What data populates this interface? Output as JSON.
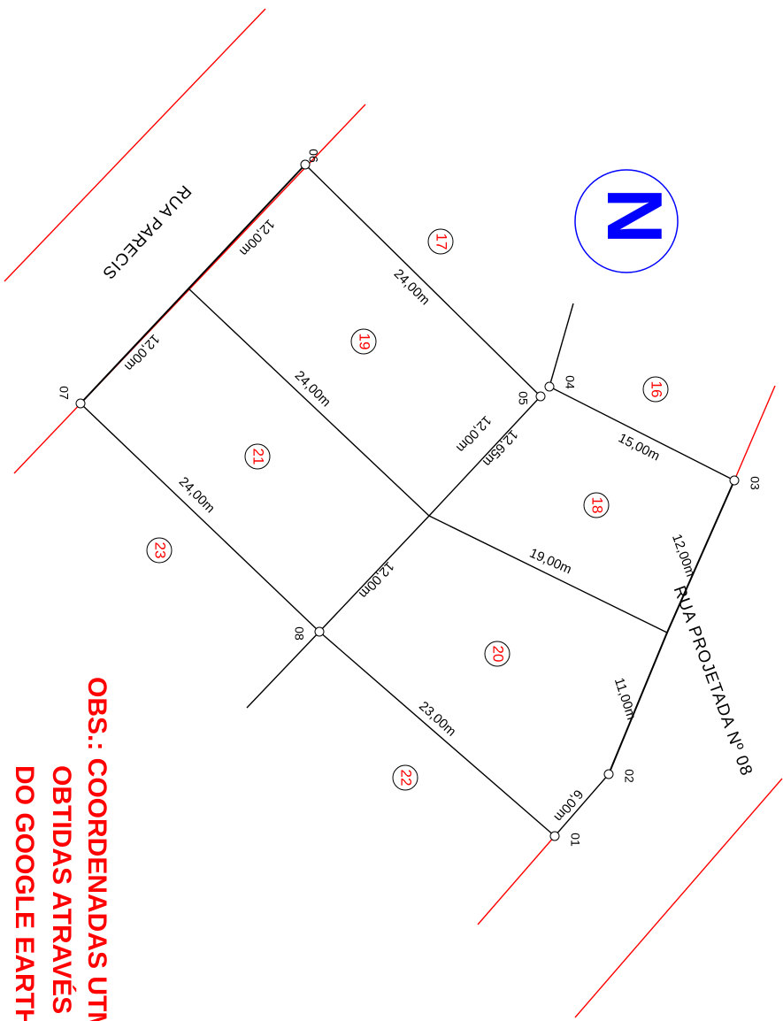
{
  "streets": [
    "RUA PARECIS",
    "RUA PROJETADA Nº 08"
  ],
  "points": [
    "01",
    "02",
    "03",
    "04",
    "05",
    "06",
    "07",
    "08"
  ],
  "lots": [
    "16",
    "17",
    "18",
    "19",
    "20",
    "21",
    "22",
    "23"
  ],
  "dimensions": [
    "12,00m",
    "12,00m",
    "24,00m",
    "24,00m",
    "24,00m",
    "15,00m",
    "12,00m",
    "12,00m",
    "12,65m",
    "19,00m",
    "12,00m",
    "11,00m",
    "23,00m",
    "6,00m"
  ],
  "north": "N",
  "note": [
    "OBS.: COORDENADAS UTM",
    "OBTIDAS ATRAVÉS",
    "DO GOOGLE EARTH"
  ]
}
